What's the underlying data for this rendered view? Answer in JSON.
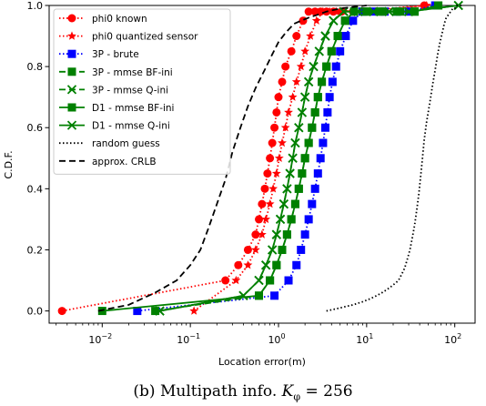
{
  "caption": {
    "prefix": "(b) Multipath info.",
    "k": "K",
    "sub": "φ",
    "rest": " = 256"
  },
  "chart_data": {
    "type": "line",
    "xlabel": "Location error(m)",
    "ylabel": "C.D.F.",
    "xscale": "log",
    "xlim": [
      0.0025,
      170
    ],
    "ylim": [
      -0.04,
      1.0
    ],
    "xticks": [
      0.01,
      0.1,
      1,
      10,
      100
    ],
    "xtick_labels": [
      [
        "10",
        "−2"
      ],
      [
        "10",
        "−1"
      ],
      [
        "10",
        "0"
      ],
      [
        "10",
        "1"
      ],
      [
        "10",
        "2"
      ]
    ],
    "yticks": [
      0.0,
      0.2,
      0.4,
      0.6,
      0.8,
      1.0
    ],
    "ytick_labels": [
      "0.0",
      "0.2",
      "0.4",
      "0.6",
      "0.8",
      "1.0"
    ],
    "grid": false,
    "legend_position": "top-left",
    "series": [
      {
        "name": "phi0 known",
        "color": "#ff0000",
        "marker": "circle",
        "linestyle": "dotted",
        "x": [
          0.0035,
          0.25,
          0.35,
          0.45,
          0.55,
          0.6,
          0.65,
          0.7,
          0.75,
          0.8,
          0.85,
          0.9,
          0.95,
          1.0,
          1.1,
          1.2,
          1.4,
          1.6,
          1.9,
          2.2,
          2.6,
          3.0,
          3.5,
          4.2,
          5.2,
          7.0,
          45
        ],
        "y": [
          0.0,
          0.1,
          0.15,
          0.2,
          0.25,
          0.3,
          0.35,
          0.4,
          0.45,
          0.5,
          0.55,
          0.6,
          0.65,
          0.7,
          0.75,
          0.8,
          0.85,
          0.9,
          0.95,
          0.98,
          0.98,
          0.98,
          0.98,
          0.98,
          0.98,
          0.98,
          1.0
        ]
      },
      {
        "name": "phi0 quantized sensor",
        "color": "#ff0000",
        "marker": "star",
        "linestyle": "dotted",
        "x": [
          0.11,
          0.33,
          0.45,
          0.55,
          0.65,
          0.72,
          0.8,
          0.87,
          0.95,
          1.02,
          1.1,
          1.2,
          1.3,
          1.45,
          1.6,
          1.8,
          2.0,
          2.3,
          2.7,
          3.2,
          3.8,
          4.5,
          5.5,
          7.0,
          9.0,
          48
        ],
        "y": [
          0.0,
          0.1,
          0.15,
          0.2,
          0.25,
          0.3,
          0.35,
          0.4,
          0.45,
          0.5,
          0.55,
          0.6,
          0.65,
          0.7,
          0.75,
          0.8,
          0.85,
          0.9,
          0.95,
          0.98,
          0.98,
          0.98,
          0.98,
          0.98,
          0.98,
          1.0
        ]
      },
      {
        "name": "3P - brute",
        "color": "#0000ff",
        "marker": "square",
        "linestyle": "dotted",
        "x": [
          0.025,
          0.9,
          1.3,
          1.6,
          1.8,
          2.0,
          2.2,
          2.4,
          2.6,
          2.8,
          3.0,
          3.2,
          3.4,
          3.6,
          3.8,
          4.1,
          4.5,
          5.0,
          5.8,
          7.0,
          9.0,
          12,
          16,
          22,
          30,
          60
        ],
        "y": [
          0.0,
          0.05,
          0.1,
          0.15,
          0.2,
          0.25,
          0.3,
          0.35,
          0.4,
          0.45,
          0.5,
          0.55,
          0.6,
          0.65,
          0.7,
          0.75,
          0.8,
          0.85,
          0.9,
          0.95,
          0.98,
          0.98,
          0.98,
          0.98,
          0.98,
          1.0
        ]
      },
      {
        "name": "3P - mmse BF-ini",
        "color": "#008000",
        "marker": "square",
        "linestyle": "dashed",
        "x": [
          0.04,
          0.6,
          0.8,
          0.95,
          1.1,
          1.25,
          1.4,
          1.55,
          1.7,
          1.85,
          2.0,
          2.2,
          2.4,
          2.6,
          2.8,
          3.1,
          3.5,
          4.0,
          4.7,
          5.7,
          7.2,
          10,
          14,
          22,
          35,
          65
        ],
        "y": [
          0.0,
          0.05,
          0.1,
          0.15,
          0.2,
          0.25,
          0.3,
          0.35,
          0.4,
          0.45,
          0.5,
          0.55,
          0.6,
          0.65,
          0.7,
          0.75,
          0.8,
          0.85,
          0.9,
          0.95,
          0.98,
          0.98,
          0.98,
          0.98,
          0.98,
          1.0
        ]
      },
      {
        "name": "3P - mmse Q-ini",
        "color": "#008000",
        "marker": "x",
        "linestyle": "dashed",
        "x": [
          0.045,
          0.4,
          0.6,
          0.72,
          0.85,
          0.95,
          1.05,
          1.15,
          1.25,
          1.35,
          1.45,
          1.55,
          1.7,
          1.85,
          2.0,
          2.2,
          2.5,
          2.9,
          3.4,
          4.2,
          5.5,
          8.0,
          12,
          18,
          30,
          110
        ],
        "y": [
          0.0,
          0.05,
          0.1,
          0.15,
          0.2,
          0.25,
          0.3,
          0.35,
          0.4,
          0.45,
          0.5,
          0.55,
          0.6,
          0.65,
          0.7,
          0.75,
          0.8,
          0.85,
          0.9,
          0.95,
          0.98,
          0.98,
          0.98,
          0.98,
          0.98,
          1.0
        ]
      },
      {
        "name": "D1 - mmse BF-ini",
        "color": "#008000",
        "marker": "square",
        "linestyle": "solid",
        "x": [
          0.01,
          0.6,
          0.8,
          0.95,
          1.1,
          1.25,
          1.4,
          1.55,
          1.7,
          1.85,
          2.0,
          2.2,
          2.4,
          2.6,
          2.8,
          3.1,
          3.5,
          4.0,
          4.7,
          5.7,
          7.2,
          10,
          15,
          24,
          35,
          65
        ],
        "y": [
          0.0,
          0.05,
          0.1,
          0.15,
          0.2,
          0.25,
          0.3,
          0.35,
          0.4,
          0.45,
          0.5,
          0.55,
          0.6,
          0.65,
          0.7,
          0.75,
          0.8,
          0.85,
          0.9,
          0.95,
          0.98,
          0.98,
          0.98,
          0.98,
          0.98,
          1.0
        ]
      },
      {
        "name": "D1 - mmse Q-ini",
        "color": "#008000",
        "marker": "x",
        "linestyle": "solid",
        "x": [
          0.045,
          0.4,
          0.6,
          0.72,
          0.85,
          0.95,
          1.05,
          1.15,
          1.25,
          1.35,
          1.45,
          1.55,
          1.7,
          1.85,
          2.0,
          2.2,
          2.5,
          2.9,
          3.4,
          4.2,
          5.5,
          8.0,
          12,
          18,
          30,
          110
        ],
        "y": [
          0.0,
          0.05,
          0.1,
          0.15,
          0.2,
          0.25,
          0.3,
          0.35,
          0.4,
          0.45,
          0.5,
          0.55,
          0.6,
          0.65,
          0.7,
          0.75,
          0.8,
          0.85,
          0.9,
          0.95,
          0.98,
          0.98,
          0.98,
          0.98,
          0.98,
          1.0
        ]
      },
      {
        "name": "random guess",
        "color": "#000000",
        "marker": "none",
        "linestyle": "dotted",
        "x": [
          3.5,
          5,
          7,
          9,
          11,
          13,
          15,
          17,
          19,
          21,
          23,
          25,
          27,
          29,
          31,
          33,
          35,
          37,
          39,
          41,
          43,
          45,
          48,
          52,
          56,
          60,
          64,
          68,
          72,
          76,
          80,
          85,
          90,
          95,
          100,
          105,
          110,
          115,
          120,
          125
        ],
        "y": [
          0.0,
          0.01,
          0.02,
          0.03,
          0.04,
          0.05,
          0.06,
          0.07,
          0.08,
          0.09,
          0.1,
          0.12,
          0.14,
          0.17,
          0.2,
          0.24,
          0.28,
          0.33,
          0.38,
          0.44,
          0.5,
          0.56,
          0.62,
          0.68,
          0.74,
          0.79,
          0.84,
          0.88,
          0.91,
          0.94,
          0.96,
          0.97,
          0.98,
          0.99,
          0.99,
          1.0,
          1.0,
          1.0,
          1.0,
          1.0
        ]
      },
      {
        "name": "approx. CRLB",
        "color": "#000000",
        "marker": "none",
        "linestyle": "dashed",
        "x": [
          0.009,
          0.02,
          0.04,
          0.07,
          0.1,
          0.13,
          0.16,
          0.2,
          0.25,
          0.3,
          0.37,
          0.45,
          0.55,
          0.7,
          0.85,
          1.0,
          1.2,
          1.5,
          1.8,
          2.2,
          2.8,
          3.5,
          5,
          7,
          10
        ],
        "y": [
          0.0,
          0.02,
          0.06,
          0.1,
          0.15,
          0.2,
          0.27,
          0.35,
          0.43,
          0.52,
          0.6,
          0.67,
          0.73,
          0.79,
          0.84,
          0.88,
          0.91,
          0.94,
          0.95,
          0.96,
          0.97,
          0.98,
          0.99,
          0.995,
          1.0
        ]
      }
    ]
  }
}
